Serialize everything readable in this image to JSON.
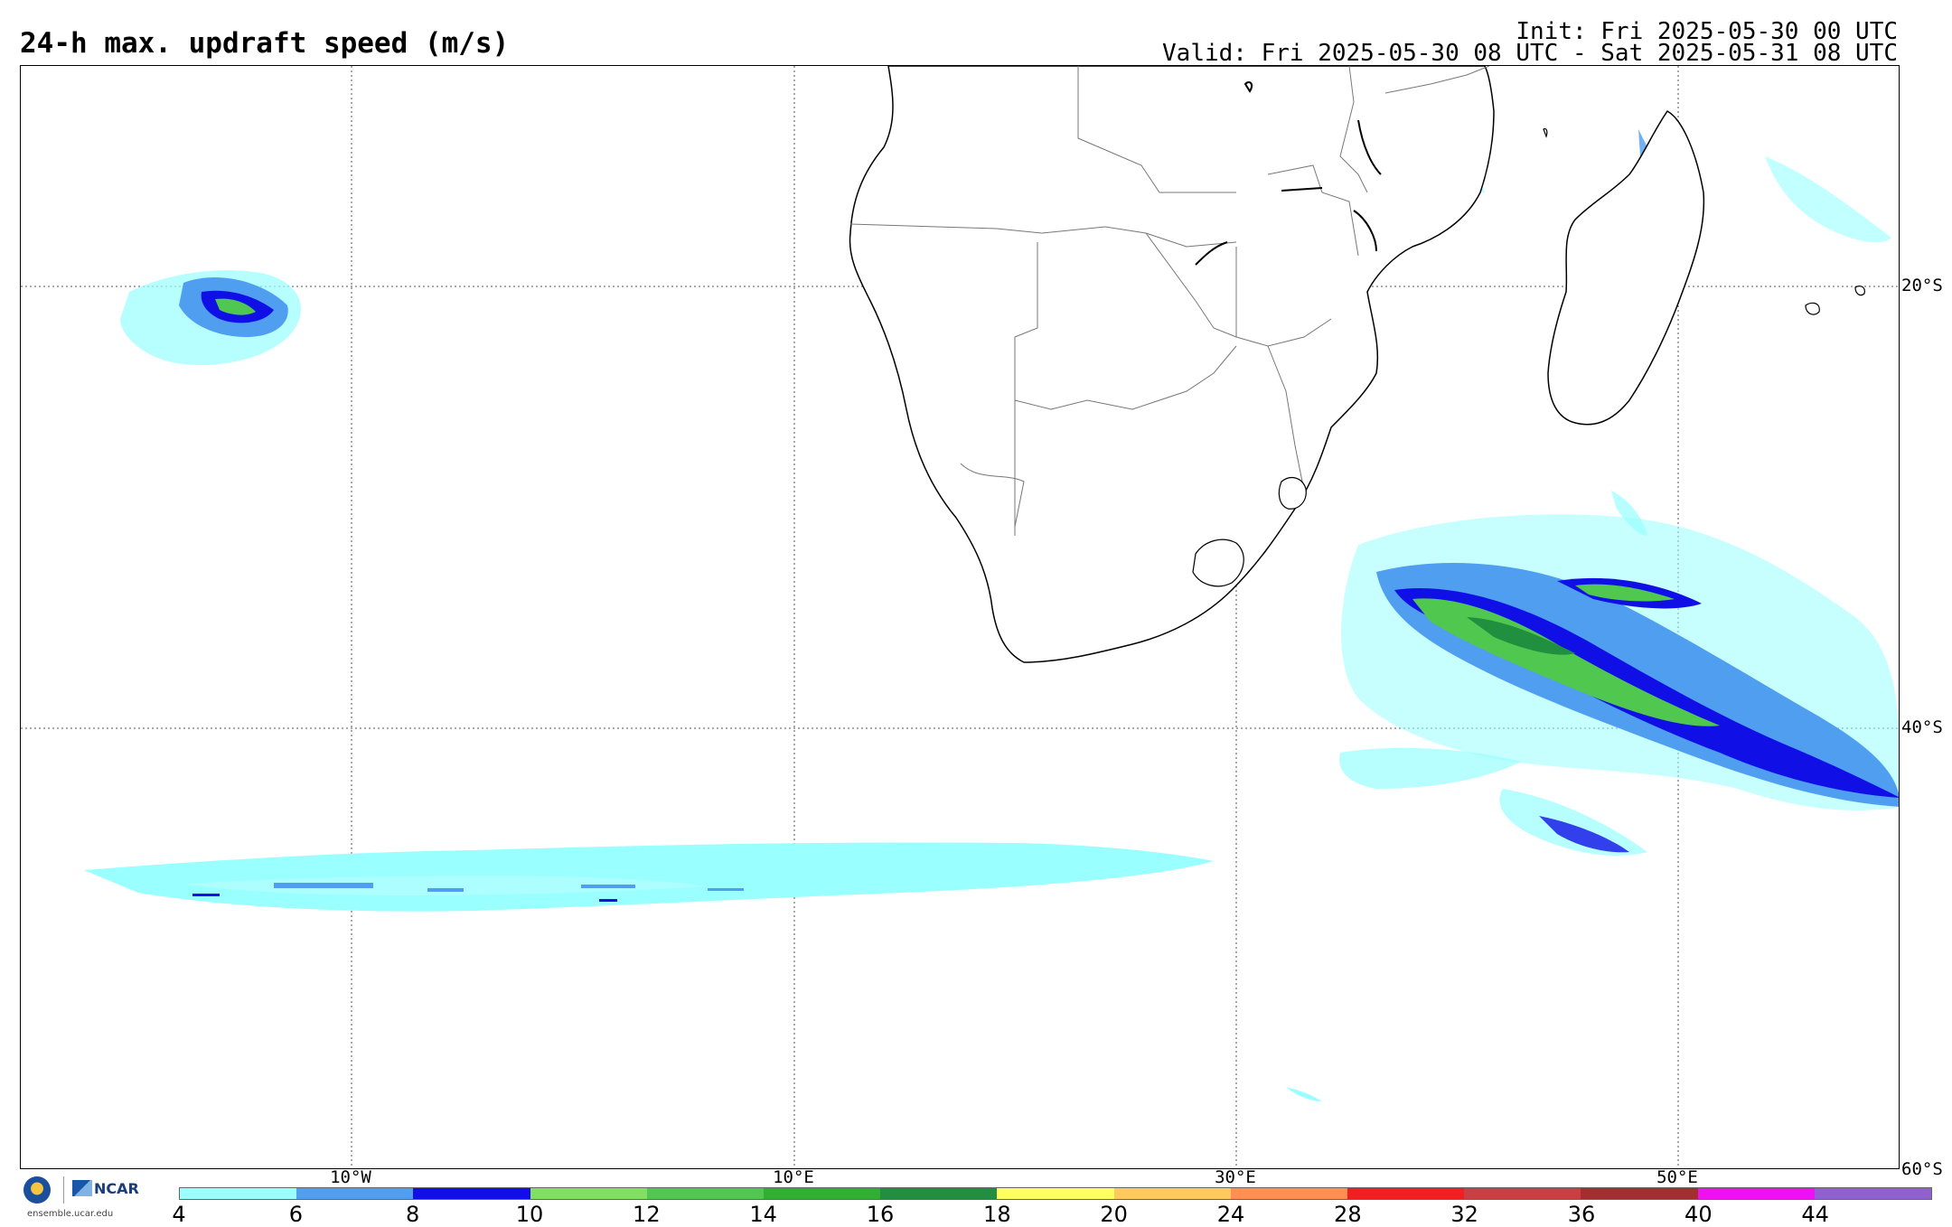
{
  "header": {
    "title": "24-h max. updraft speed (m/s)",
    "init": "Init: Fri 2025-05-30 00 UTC",
    "valid": "Valid: Fri 2025-05-30 08 UTC - Sat 2025-05-31 08 UTC"
  },
  "map": {
    "projection": "equirectangular",
    "lon_range": [
      -25,
      60
    ],
    "lat_range": [
      -10,
      -60
    ],
    "lon_labels": [
      "10°W",
      "10°E",
      "30°E",
      "50°E"
    ],
    "lat_labels": [
      "20°S",
      "40°S",
      "60°S"
    ],
    "gridlines": "dotted"
  },
  "colorbar": {
    "ticks": [
      "4",
      "6",
      "8",
      "10",
      "12",
      "14",
      "16",
      "18",
      "20",
      "24",
      "28",
      "32",
      "36",
      "40",
      "44"
    ],
    "colors": [
      "#99ffff",
      "#4f9ef0",
      "#1010e6",
      "#80e060",
      "#50c850",
      "#30b030",
      "#208f40",
      "#ffff60",
      "#ffc860",
      "#ff9050",
      "#f02020",
      "#c84040",
      "#a03030",
      "#ee10ee",
      "#9060d0"
    ]
  },
  "logos": {
    "nsf": "NSF",
    "ncar": "NCAR",
    "url": "ensemble.ucar.edu"
  }
}
